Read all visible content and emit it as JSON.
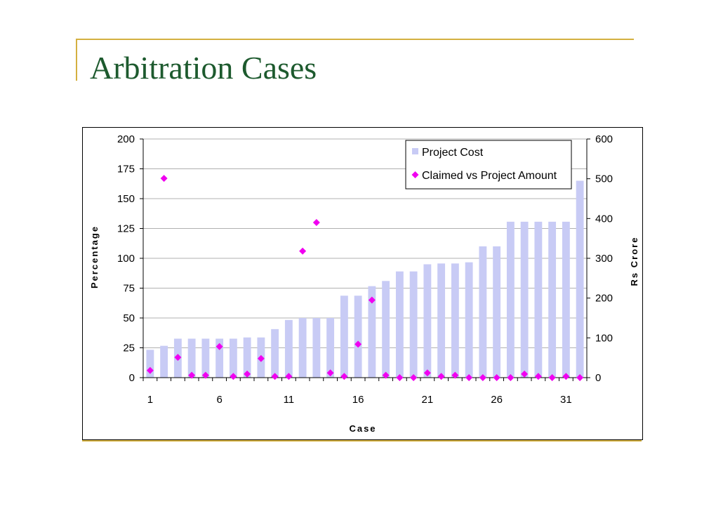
{
  "slide": {
    "title": "Arbitration Cases"
  },
  "colors": {
    "title": "#1d5a2e",
    "accent_line": "#d4b040",
    "bar": "#c8cbf5",
    "marker": "#f000f0",
    "grid": "#b0b0b0"
  },
  "chart_data": {
    "type": "bar+scatter",
    "title": "",
    "xlabel": "Case",
    "ylabel_left": "Percentage",
    "ylabel_right": "Rs Crore",
    "ylim_left": [
      0,
      200
    ],
    "ylim_right": [
      0,
      600
    ],
    "yticks_left": [
      0,
      25,
      50,
      75,
      100,
      125,
      150,
      175,
      200
    ],
    "yticks_right": [
      0,
      100,
      200,
      300,
      400,
      500,
      600
    ],
    "xtick_labels": [
      1,
      6,
      11,
      16,
      21,
      26,
      31
    ],
    "grid": true,
    "legend_position": "top-right",
    "categories": [
      1,
      2,
      3,
      4,
      5,
      6,
      7,
      8,
      9,
      10,
      11,
      12,
      13,
      14,
      15,
      16,
      17,
      18,
      19,
      20,
      21,
      22,
      23,
      24,
      25,
      26,
      27,
      28,
      29,
      30,
      31,
      32
    ],
    "series": [
      {
        "name": "Project Cost",
        "type": "bar",
        "axis": "right",
        "values": [
          70,
          80,
          98,
          98,
          98,
          98,
          98,
          101,
          101,
          122,
          145,
          150,
          150,
          150,
          206,
          206,
          230,
          243,
          267,
          267,
          285,
          287,
          287,
          290,
          330,
          330,
          392,
          392,
          392,
          392,
          392,
          495
        ]
      },
      {
        "name": "Claimed vs Project Amount",
        "type": "scatter",
        "axis": "left",
        "values": [
          6,
          167,
          17,
          2,
          2,
          26,
          1,
          3,
          16,
          1,
          1,
          106,
          130,
          4,
          1,
          28,
          65,
          2,
          0,
          0,
          4,
          1,
          2,
          0,
          0,
          0,
          0,
          3,
          1,
          0,
          1,
          0
        ]
      }
    ]
  }
}
